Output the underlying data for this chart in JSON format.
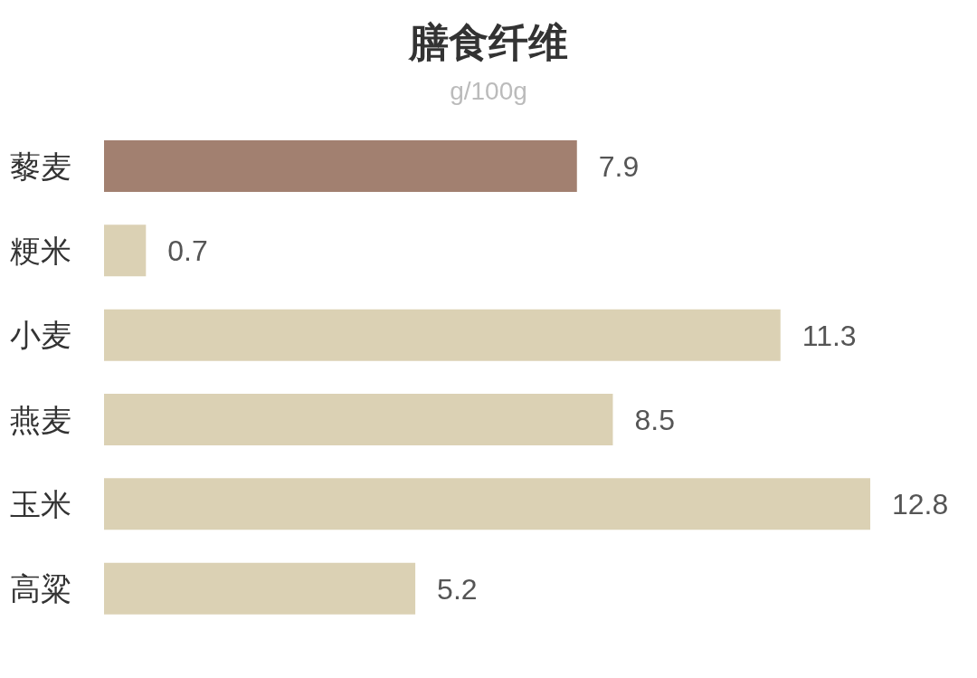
{
  "chart_data": {
    "type": "bar",
    "orientation": "horizontal",
    "title": "膳食纤维",
    "subtitle": "g/100g",
    "categories": [
      "藜麦",
      "粳米",
      "小麦",
      "燕麦",
      "玉米",
      "高粱"
    ],
    "values": [
      7.9,
      0.7,
      11.3,
      8.5,
      12.8,
      5.2
    ],
    "colors": [
      "#a28070",
      "#dbd1b4",
      "#dbd1b4",
      "#dbd1b4",
      "#dbd1b4",
      "#dbd1b4"
    ],
    "data_labels": true,
    "grid": false,
    "legend": false
  }
}
